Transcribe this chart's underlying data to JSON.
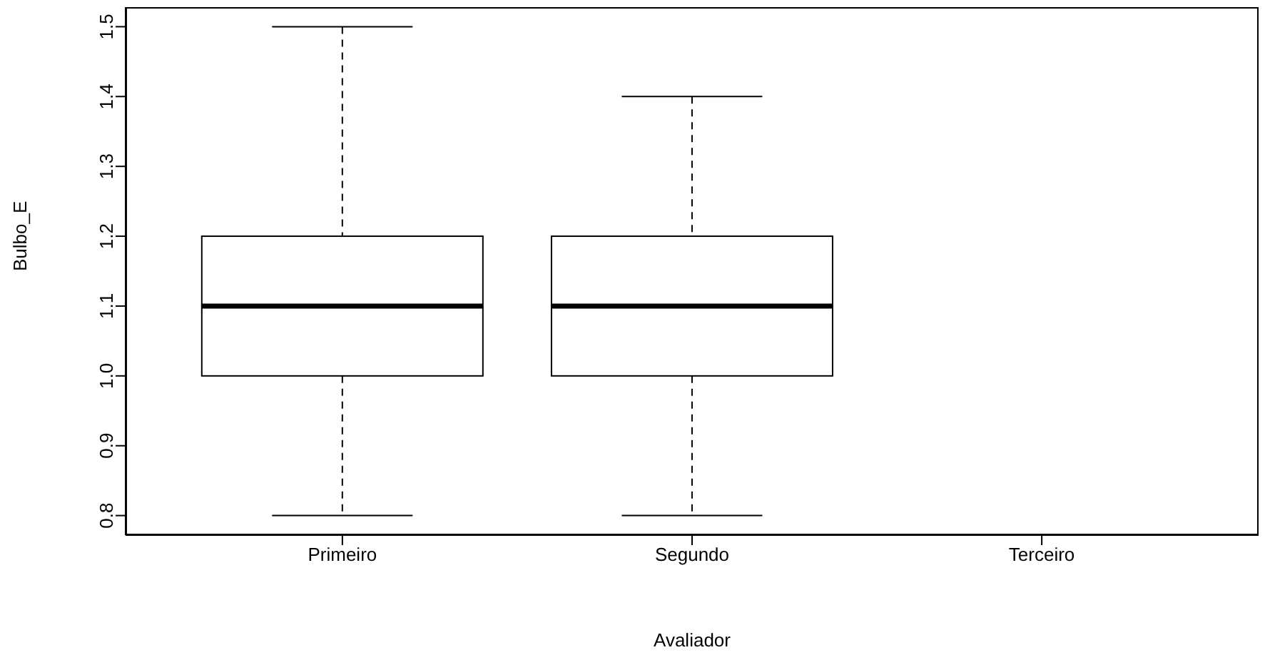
{
  "chart_data": {
    "type": "box",
    "xlabel": "Avaliador",
    "ylabel": "Bulbo_E",
    "categories": [
      "Primeiro",
      "Segundo",
      "Terceiro"
    ],
    "boxes": [
      {
        "low": 0.8,
        "q1": 1.0,
        "median": 1.1,
        "q3": 1.2,
        "high": 1.5
      },
      {
        "low": 0.8,
        "q1": 1.0,
        "median": 1.1,
        "q3": 1.2,
        "high": 1.4
      },
      null
    ],
    "ylim": [
      0.772,
      1.528
    ],
    "yticks": [
      0.8,
      0.9,
      {
        "value": 1,
        "label": "1.0"
      },
      1.1,
      1.2,
      1.3,
      1.4,
      1.5
    ]
  }
}
